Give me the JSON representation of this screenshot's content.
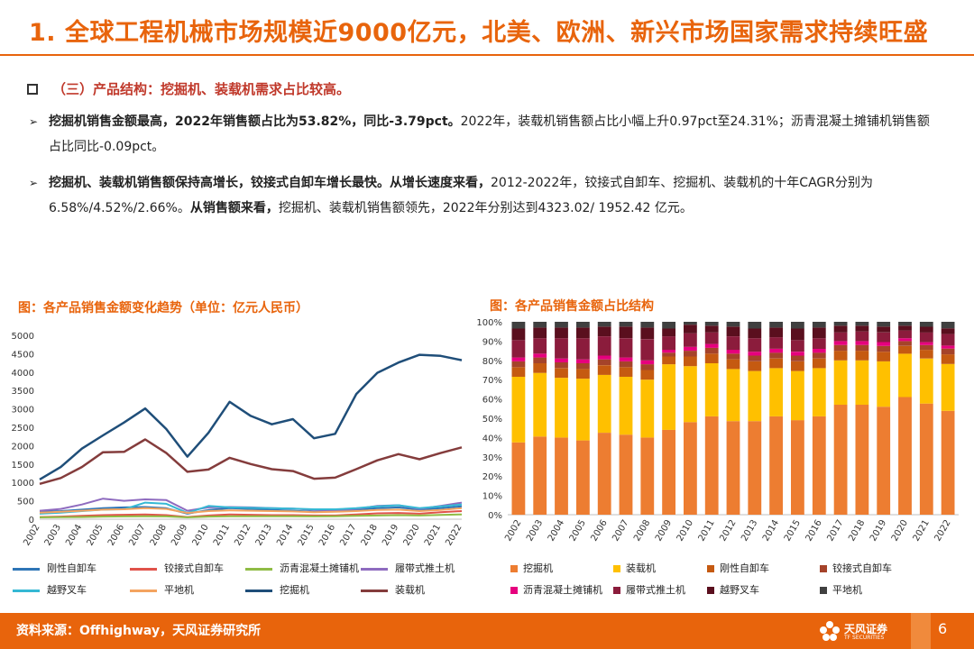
{
  "title": "1. 全球工程机械市场规模近9000亿元，北美、欧洲、新兴市场国家需求持续旺盛",
  "section_heading": "（三）产品结构：挖掘机、装载机需求占比较高。",
  "bullets": [
    {
      "bold": "挖掘机销售金额最高，2022年销售额占比为53.82%，同比-3.79pct。",
      "normal": "2022年，装载机销售额占比小幅上升0.97pct至24.31%；沥青混凝土摊铺机销售额占比同比-0.09pct。"
    },
    {
      "bold": "挖掘机、装载机销售额保持高增长，铰接式自卸车增长最快。从增长速度来看，",
      "normal": "2012-2022年，铰接式自卸车、挖掘机、装载机的十年CAGR分别为6.58%/4.52%/2.66%。",
      "bold2": "从销售额来看，",
      "normal2": "挖掘机、装载机销售额领先，2022年分别达到4323.02/ 1952.42 亿元。"
    }
  ],
  "bullet_symbol": "➢",
  "chart_left_title": "图：各产品销售金额变化趋势（单位：亿元人民币）",
  "chart_right_title": "图：各产品销售金额占比结构",
  "footer": {
    "source": "资料来源：Offhighway，天风证券研究所",
    "logo_cn": "天风证券",
    "logo_en": "TF SECURITIES",
    "page": "6"
  },
  "chart_data": [
    {
      "type": "line",
      "title": "图：各产品销售金额变化趋势（单位：亿元人民币）",
      "x": [
        "2002",
        "2003",
        "2004",
        "2005",
        "2006",
        "2007",
        "2008",
        "2009",
        "2010",
        "2011",
        "2012",
        "2013",
        "2014",
        "2015",
        "2016",
        "2017",
        "2018",
        "2019",
        "2020",
        "2021",
        "2022"
      ],
      "ylim": [
        0,
        5000
      ],
      "yticks": [
        "0",
        "500",
        "1000",
        "1500",
        "2000",
        "2500",
        "3000",
        "3500",
        "4000",
        "4500",
        "5000"
      ],
      "series": [
        {
          "name": "刚性自卸车",
          "color": "#2e75b6",
          "values": [
            200,
            220,
            260,
            300,
            320,
            330,
            300,
            150,
            250,
            300,
            280,
            250,
            230,
            200,
            210,
            260,
            300,
            320,
            260,
            300,
            350
          ]
        },
        {
          "name": "铰接式自卸车",
          "color": "#e0524a",
          "values": [
            60,
            70,
            90,
            110,
            120,
            130,
            110,
            60,
            100,
            130,
            120,
            110,
            110,
            100,
            100,
            130,
            160,
            170,
            150,
            190,
            220
          ]
        },
        {
          "name": "沥青混凝土摊铺机",
          "color": "#8fbc45",
          "values": [
            50,
            55,
            60,
            70,
            75,
            80,
            75,
            50,
            70,
            80,
            80,
            80,
            80,
            75,
            80,
            90,
            100,
            110,
            100,
            115,
            130
          ]
        },
        {
          "name": "履带式推土机",
          "color": "#8e6bbf",
          "values": [
            230,
            280,
            400,
            560,
            500,
            540,
            520,
            230,
            320,
            330,
            320,
            300,
            290,
            250,
            240,
            280,
            360,
            380,
            280,
            360,
            450
          ]
        },
        {
          "name": "越野叉车",
          "color": "#35b8d4",
          "values": [
            150,
            180,
            220,
            260,
            270,
            450,
            420,
            170,
            360,
            320,
            310,
            300,
            290,
            270,
            270,
            300,
            350,
            380,
            300,
            350,
            400
          ]
        },
        {
          "name": "平地机",
          "color": "#f4a460",
          "values": [
            180,
            200,
            230,
            260,
            270,
            300,
            280,
            170,
            220,
            240,
            230,
            220,
            210,
            190,
            200,
            220,
            250,
            260,
            220,
            250,
            300
          ]
        },
        {
          "name": "挖掘机",
          "color": "#1f4e79",
          "values": [
            1080,
            1420,
            1920,
            2280,
            2630,
            3010,
            2450,
            1700,
            2350,
            3190,
            2810,
            2580,
            2720,
            2200,
            2320,
            3400,
            3980,
            4260,
            4470,
            4440,
            4323.02
          ]
        },
        {
          "name": "装载机",
          "color": "#843c3c",
          "values": [
            960,
            1120,
            1420,
            1820,
            1830,
            2170,
            1800,
            1290,
            1350,
            1670,
            1500,
            1360,
            1310,
            1100,
            1130,
            1360,
            1600,
            1770,
            1630,
            1800,
            1952.42
          ]
        }
      ]
    },
    {
      "type": "bar",
      "stacked": true,
      "title": "图：各产品销售金额占比结构",
      "categories": [
        "2002",
        "2003",
        "2004",
        "2005",
        "2006",
        "2007",
        "2008",
        "2009",
        "2010",
        "2011",
        "2012",
        "2013",
        "2014",
        "2015",
        "2016",
        "2017",
        "2018",
        "2019",
        "2020",
        "2021",
        "2022"
      ],
      "ylim": [
        0,
        100
      ],
      "yticks": [
        "0%",
        "10%",
        "20%",
        "30%",
        "40%",
        "50%",
        "60%",
        "70%",
        "80%",
        "90%",
        "100%"
      ],
      "series": [
        {
          "name": "挖掘机",
          "color": "#ed7d31",
          "values": [
            37.5,
            40.5,
            40.0,
            38.5,
            42.5,
            41.5,
            40.0,
            44.0,
            48.0,
            51.0,
            48.5,
            48.5,
            51.0,
            49.0,
            51.0,
            57.0,
            57.0,
            56.0,
            61.0,
            57.61,
            53.82
          ]
        },
        {
          "name": "装载机",
          "color": "#ffc000",
          "values": [
            34.0,
            33.0,
            31.0,
            32.0,
            30.0,
            30.0,
            30.0,
            34.0,
            29.0,
            27.5,
            27.0,
            26.0,
            25.0,
            25.5,
            25.0,
            23.0,
            23.0,
            23.5,
            22.5,
            23.34,
            24.31
          ]
        },
        {
          "name": "刚性自卸车",
          "color": "#c55a11",
          "values": [
            5.0,
            5.0,
            5.0,
            5.0,
            5.0,
            5.0,
            5.0,
            4.0,
            5.0,
            5.0,
            5.0,
            5.0,
            5.0,
            5.0,
            5.0,
            5.0,
            5.0,
            5.0,
            4.0,
            4.5,
            5.0
          ]
        },
        {
          "name": "铰接式自卸车",
          "color": "#a5432a",
          "values": [
            3.0,
            3.0,
            3.0,
            3.0,
            3.0,
            3.0,
            3.0,
            2.0,
            3.0,
            3.0,
            3.0,
            3.0,
            3.0,
            3.0,
            3.0,
            3.0,
            3.0,
            3.0,
            2.5,
            2.5,
            3.0
          ]
        },
        {
          "name": "沥青混凝土摊铺机",
          "color": "#e6007e",
          "values": [
            2.0,
            2.0,
            2.0,
            2.0,
            2.0,
            2.0,
            2.0,
            1.5,
            2.0,
            2.0,
            2.0,
            2.0,
            2.0,
            2.0,
            2.0,
            2.0,
            2.0,
            2.0,
            1.5,
            1.5,
            1.5
          ]
        },
        {
          "name": "履带式推土机",
          "color": "#8b1c3c",
          "values": [
            9.0,
            8.0,
            10.5,
            11.0,
            10.0,
            10.0,
            11.0,
            7.0,
            7.0,
            6.0,
            7.0,
            7.0,
            6.0,
            6.0,
            5.5,
            4.5,
            5.0,
            5.0,
            4.0,
            5.0,
            6.0
          ]
        },
        {
          "name": "越野叉车",
          "color": "#5a0f1e",
          "values": [
            6.0,
            5.5,
            5.5,
            5.5,
            5.0,
            6.0,
            6.0,
            4.0,
            4.5,
            3.5,
            5.0,
            5.0,
            5.0,
            6.0,
            5.5,
            3.5,
            3.0,
            3.0,
            2.5,
            3.0,
            3.0
          ]
        },
        {
          "name": "平地机",
          "color": "#404040",
          "values": [
            3.5,
            3.0,
            3.0,
            3.0,
            2.5,
            2.5,
            3.0,
            3.5,
            1.5,
            2.0,
            2.5,
            3.5,
            3.0,
            3.5,
            3.0,
            2.0,
            2.0,
            2.5,
            2.0,
            2.55,
            3.37
          ]
        }
      ]
    }
  ]
}
